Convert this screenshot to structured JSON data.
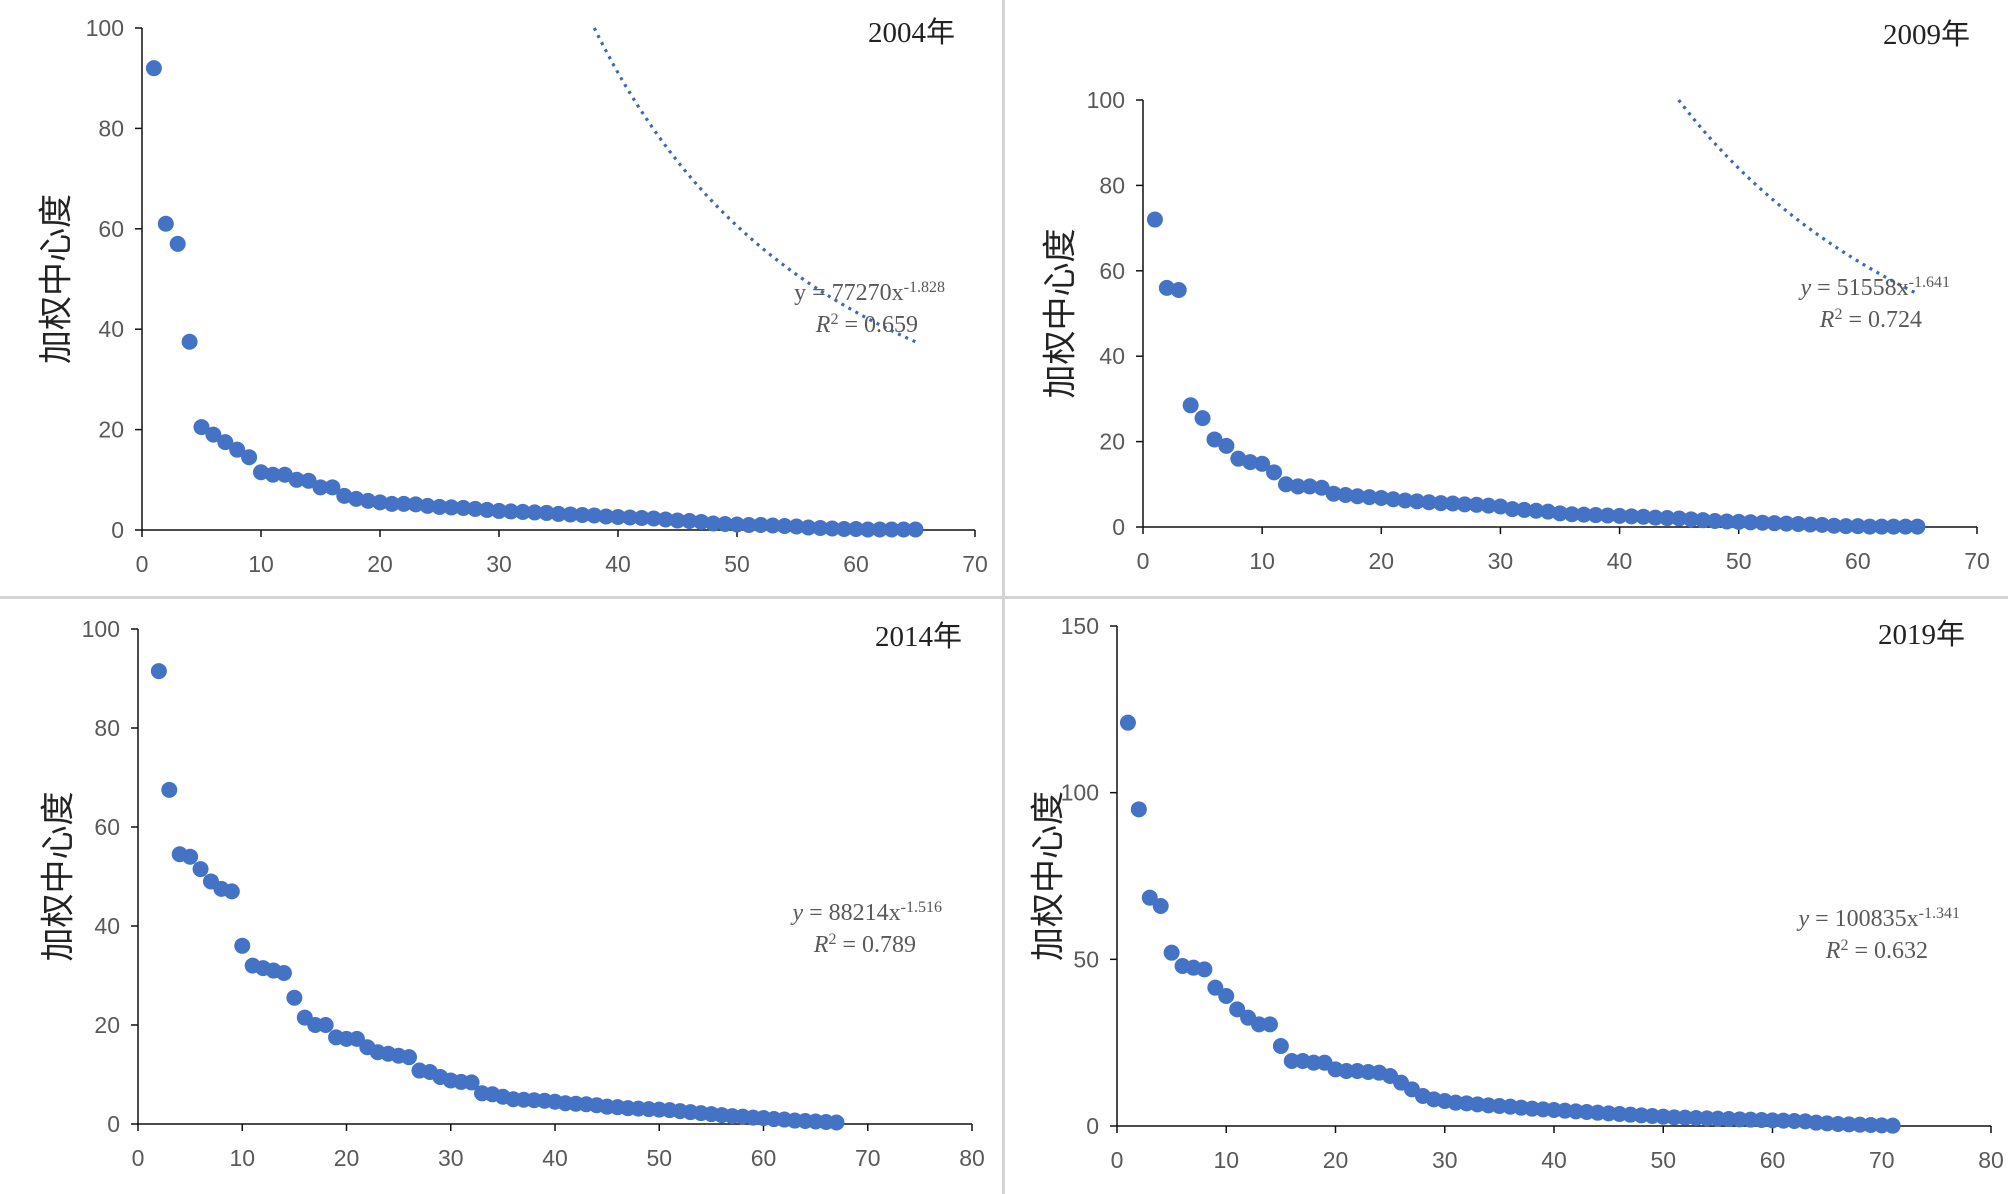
{
  "chart_data": [
    {
      "type": "scatter",
      "title": "2004年",
      "ylabel": "加权中心度",
      "xlim": [
        0,
        70
      ],
      "ylim": [
        0,
        100
      ],
      "xticks": [
        0,
        10,
        20,
        30,
        40,
        50,
        60,
        70
      ],
      "yticks": [
        0,
        20,
        40,
        60,
        80,
        100
      ],
      "trendline": {
        "type": "power",
        "a": 77270,
        "b": -1.828,
        "y_var": "y",
        "coef": "77270",
        "exp": "-1.828",
        "r2_label": "R",
        "r2_sup": "2",
        "r2_value": " = 0.659"
      },
      "points": [
        [
          1,
          92
        ],
        [
          2,
          61
        ],
        [
          3,
          57
        ],
        [
          4,
          37.5
        ],
        [
          5,
          20.5
        ],
        [
          6,
          19
        ],
        [
          7,
          17.5
        ],
        [
          8,
          16
        ],
        [
          9,
          14.5
        ],
        [
          10,
          11.5
        ],
        [
          11,
          11
        ],
        [
          12,
          11
        ],
        [
          13,
          10
        ],
        [
          14,
          9.8
        ],
        [
          15,
          8.5
        ],
        [
          16,
          8.5
        ],
        [
          17,
          6.8
        ],
        [
          18,
          6.2
        ],
        [
          19,
          5.8
        ],
        [
          20,
          5.5
        ],
        [
          21,
          5.2
        ],
        [
          22,
          5.2
        ],
        [
          23,
          5.1
        ],
        [
          24,
          4.8
        ],
        [
          25,
          4.6
        ],
        [
          26,
          4.5
        ],
        [
          27,
          4.4
        ],
        [
          28,
          4.2
        ],
        [
          29,
          4
        ],
        [
          30,
          3.8
        ],
        [
          31,
          3.7
        ],
        [
          32,
          3.6
        ],
        [
          33,
          3.5
        ],
        [
          34,
          3.4
        ],
        [
          35,
          3.2
        ],
        [
          36,
          3.1
        ],
        [
          37,
          3
        ],
        [
          38,
          2.9
        ],
        [
          39,
          2.7
        ],
        [
          40,
          2.6
        ],
        [
          41,
          2.5
        ],
        [
          42,
          2.4
        ],
        [
          43,
          2.3
        ],
        [
          44,
          2.1
        ],
        [
          45,
          1.9
        ],
        [
          46,
          1.8
        ],
        [
          47,
          1.6
        ],
        [
          48,
          1.3
        ],
        [
          49,
          1.2
        ],
        [
          50,
          1.1
        ],
        [
          51,
          1
        ],
        [
          52,
          1
        ],
        [
          53,
          0.9
        ],
        [
          54,
          0.8
        ],
        [
          55,
          0.7
        ],
        [
          56,
          0.5
        ],
        [
          57,
          0.4
        ],
        [
          58,
          0.3
        ],
        [
          59,
          0.2
        ],
        [
          60,
          0.2
        ],
        [
          61,
          0.1
        ],
        [
          62,
          0.1
        ],
        [
          63,
          0.1
        ],
        [
          64,
          0.1
        ],
        [
          65,
          0.1
        ]
      ]
    },
    {
      "type": "scatter",
      "title": "2009年",
      "ylabel": "加权中心度",
      "xlim": [
        0,
        70
      ],
      "ylim": [
        0,
        100
      ],
      "xticks": [
        0,
        10,
        20,
        30,
        40,
        50,
        60,
        70
      ],
      "yticks": [
        0,
        20,
        40,
        60,
        80,
        100
      ],
      "trendline": {
        "type": "power",
        "a": 51558,
        "b": -1.641,
        "y_var": "y",
        "coef": "51558",
        "exp": "-1.641",
        "r2_label": "R",
        "r2_sup": "2",
        "r2_value": " = 0.724"
      },
      "points": [
        [
          1,
          72
        ],
        [
          2,
          56
        ],
        [
          3,
          55.5
        ],
        [
          4,
          28.5
        ],
        [
          5,
          25.5
        ],
        [
          6,
          20.5
        ],
        [
          7,
          19
        ],
        [
          8,
          16
        ],
        [
          9,
          15.2
        ],
        [
          10,
          14.8
        ],
        [
          11,
          12.8
        ],
        [
          12,
          10
        ],
        [
          13,
          9.5
        ],
        [
          14,
          9.5
        ],
        [
          15,
          9.2
        ],
        [
          16,
          7.8
        ],
        [
          17,
          7.5
        ],
        [
          18,
          7.2
        ],
        [
          19,
          7
        ],
        [
          20,
          6.8
        ],
        [
          21,
          6.5
        ],
        [
          22,
          6.2
        ],
        [
          23,
          6
        ],
        [
          24,
          5.8
        ],
        [
          25,
          5.6
        ],
        [
          26,
          5.5
        ],
        [
          27,
          5.3
        ],
        [
          28,
          5.2
        ],
        [
          29,
          5
        ],
        [
          30,
          4.8
        ],
        [
          31,
          4.2
        ],
        [
          32,
          4
        ],
        [
          33,
          3.8
        ],
        [
          34,
          3.6
        ],
        [
          35,
          3.2
        ],
        [
          36,
          3
        ],
        [
          37,
          2.9
        ],
        [
          38,
          2.8
        ],
        [
          39,
          2.7
        ],
        [
          40,
          2.6
        ],
        [
          41,
          2.5
        ],
        [
          42,
          2.4
        ],
        [
          43,
          2.2
        ],
        [
          44,
          2.1
        ],
        [
          45,
          2
        ],
        [
          46,
          1.8
        ],
        [
          47,
          1.6
        ],
        [
          48,
          1.4
        ],
        [
          49,
          1.3
        ],
        [
          50,
          1.2
        ],
        [
          51,
          1.1
        ],
        [
          52,
          1
        ],
        [
          53,
          0.9
        ],
        [
          54,
          0.8
        ],
        [
          55,
          0.7
        ],
        [
          56,
          0.6
        ],
        [
          57,
          0.5
        ],
        [
          58,
          0.3
        ],
        [
          59,
          0.2
        ],
        [
          60,
          0.2
        ],
        [
          61,
          0.1
        ],
        [
          62,
          0.1
        ],
        [
          63,
          0.1
        ],
        [
          64,
          0.1
        ],
        [
          65,
          0.1
        ]
      ]
    },
    {
      "type": "scatter",
      "title": "2014年",
      "ylabel": "加权中心度",
      "xlim": [
        0,
        80
      ],
      "ylim": [
        0,
        100
      ],
      "xticks": [
        0,
        10,
        20,
        30,
        40,
        50,
        60,
        70,
        80
      ],
      "yticks": [
        0,
        20,
        40,
        60,
        80,
        100
      ],
      "trendline": {
        "type": "power",
        "a": 88214,
        "b": -1.516,
        "y_var": "y",
        "coef": "88214",
        "exp": "-1.516",
        "r2_label": "R",
        "r2_sup": "2",
        "r2_value": " = 0.789"
      },
      "points": [
        [
          2,
          91.5
        ],
        [
          3,
          67.5
        ],
        [
          4,
          54.5
        ],
        [
          5,
          54
        ],
        [
          6,
          51.5
        ],
        [
          7,
          49
        ],
        [
          8,
          47.5
        ],
        [
          9,
          47
        ],
        [
          10,
          36
        ],
        [
          11,
          32
        ],
        [
          12,
          31.5
        ],
        [
          13,
          31
        ],
        [
          14,
          30.5
        ],
        [
          15,
          25.5
        ],
        [
          16,
          21.5
        ],
        [
          17,
          20
        ],
        [
          18,
          20
        ],
        [
          19,
          17.5
        ],
        [
          20,
          17.2
        ],
        [
          21,
          17.2
        ],
        [
          22,
          15.5
        ],
        [
          23,
          14.5
        ],
        [
          24,
          14.2
        ],
        [
          25,
          13.8
        ],
        [
          26,
          13.5
        ],
        [
          27,
          10.8
        ],
        [
          28,
          10.5
        ],
        [
          29,
          9.5
        ],
        [
          30,
          8.8
        ],
        [
          31,
          8.5
        ],
        [
          32,
          8.4
        ],
        [
          33,
          6.2
        ],
        [
          34,
          6
        ],
        [
          35,
          5.5
        ],
        [
          36,
          5
        ],
        [
          37,
          4.9
        ],
        [
          38,
          4.8
        ],
        [
          39,
          4.7
        ],
        [
          40,
          4.5
        ],
        [
          41,
          4.2
        ],
        [
          42,
          4.1
        ],
        [
          43,
          4
        ],
        [
          44,
          3.8
        ],
        [
          45,
          3.5
        ],
        [
          46,
          3.4
        ],
        [
          47,
          3.2
        ],
        [
          48,
          3.1
        ],
        [
          49,
          3
        ],
        [
          50,
          2.9
        ],
        [
          51,
          2.8
        ],
        [
          52,
          2.6
        ],
        [
          53,
          2.4
        ],
        [
          54,
          2.2
        ],
        [
          55,
          2
        ],
        [
          56,
          1.8
        ],
        [
          57,
          1.6
        ],
        [
          58,
          1.5
        ],
        [
          59,
          1.3
        ],
        [
          60,
          1.2
        ],
        [
          61,
          1
        ],
        [
          62,
          0.9
        ],
        [
          63,
          0.7
        ],
        [
          64,
          0.6
        ],
        [
          65,
          0.5
        ],
        [
          66,
          0.4
        ],
        [
          67,
          0.3
        ]
      ]
    },
    {
      "type": "scatter",
      "title": "2019年",
      "ylabel": "加权中心度",
      "xlim": [
        0,
        80
      ],
      "ylim": [
        0,
        150
      ],
      "xticks": [
        0,
        10,
        20,
        30,
        40,
        50,
        60,
        70,
        80
      ],
      "yticks": [
        0,
        50,
        100,
        150
      ],
      "trendline": {
        "type": "power",
        "a": 100835,
        "b": -1.341,
        "y_var": "y",
        "coef": "100835",
        "exp": "-1.341",
        "r2_label": "R",
        "r2_sup": "2",
        "r2_value": " = 0.632"
      },
      "points": [
        [
          1,
          121
        ],
        [
          2,
          95
        ],
        [
          3,
          68.5
        ],
        [
          4,
          66
        ],
        [
          5,
          52
        ],
        [
          6,
          48
        ],
        [
          7,
          47.5
        ],
        [
          8,
          47
        ],
        [
          9,
          41.5
        ],
        [
          10,
          39
        ],
        [
          11,
          35
        ],
        [
          12,
          32.5
        ],
        [
          13,
          30.5
        ],
        [
          14,
          30.5
        ],
        [
          15,
          24
        ],
        [
          16,
          19.5
        ],
        [
          17,
          19.5
        ],
        [
          18,
          19
        ],
        [
          19,
          19
        ],
        [
          20,
          17
        ],
        [
          21,
          16.5
        ],
        [
          22,
          16.5
        ],
        [
          23,
          16.2
        ],
        [
          24,
          16
        ],
        [
          25,
          15
        ],
        [
          26,
          13
        ],
        [
          27,
          11
        ],
        [
          28,
          9
        ],
        [
          29,
          8
        ],
        [
          30,
          7.5
        ],
        [
          31,
          7
        ],
        [
          32,
          6.8
        ],
        [
          33,
          6.5
        ],
        [
          34,
          6.2
        ],
        [
          35,
          6
        ],
        [
          36,
          5.8
        ],
        [
          37,
          5.5
        ],
        [
          38,
          5.2
        ],
        [
          39,
          5
        ],
        [
          40,
          4.8
        ],
        [
          41,
          4.6
        ],
        [
          42,
          4.4
        ],
        [
          43,
          4.2
        ],
        [
          44,
          4
        ],
        [
          45,
          3.8
        ],
        [
          46,
          3.6
        ],
        [
          47,
          3.4
        ],
        [
          48,
          3.2
        ],
        [
          49,
          3
        ],
        [
          50,
          2.8
        ],
        [
          51,
          2.6
        ],
        [
          52,
          2.5
        ],
        [
          53,
          2.4
        ],
        [
          54,
          2.3
        ],
        [
          55,
          2.2
        ],
        [
          56,
          2.1
        ],
        [
          57,
          2
        ],
        [
          58,
          1.9
        ],
        [
          59,
          1.8
        ],
        [
          60,
          1.7
        ],
        [
          61,
          1.6
        ],
        [
          62,
          1.5
        ],
        [
          63,
          1.4
        ],
        [
          64,
          1
        ],
        [
          65,
          0.8
        ],
        [
          66,
          0.6
        ],
        [
          67,
          0.5
        ],
        [
          68,
          0.4
        ],
        [
          69,
          0.3
        ],
        [
          70,
          0.2
        ],
        [
          71,
          0.1
        ]
      ]
    }
  ],
  "colors": {
    "points": "#4472c4",
    "trendline": "#3e6ab0",
    "divider": "#d4d4d4"
  }
}
